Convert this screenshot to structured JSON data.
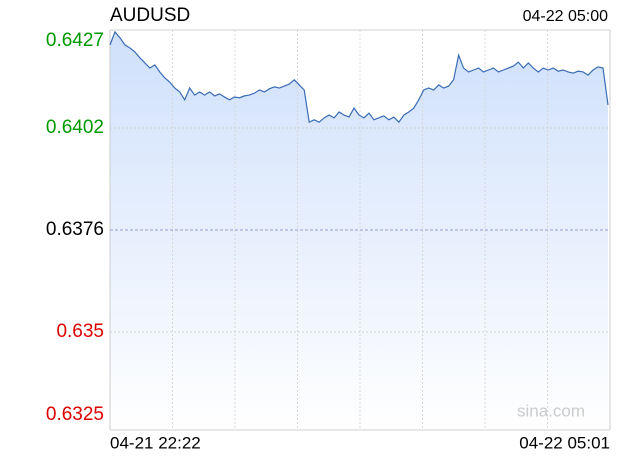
{
  "chart_data": {
    "type": "line",
    "title": "AUDUSD",
    "time": "04-22 05:00",
    "xlabels": [
      "04-21 22:22",
      "04-22 05:01"
    ],
    "watermark": "sina.com",
    "ylim": [
      0.6325,
      0.6427
    ],
    "yticks": [
      0.6427,
      0.6402,
      0.6376,
      0.635,
      0.6325
    ],
    "ytick_colors": [
      "#009900",
      "#009900",
      "#000000",
      "#dd0000",
      "#dd0000"
    ],
    "color": "#3a6cb5",
    "fill": "#cfe0fb",
    "grid": true,
    "values": [
      0.64232,
      0.64265,
      0.6425,
      0.64232,
      0.64224,
      0.64214,
      0.64199,
      0.64186,
      0.64173,
      0.64181,
      0.64163,
      0.64148,
      0.64137,
      0.64122,
      0.64112,
      0.64092,
      0.64122,
      0.64104,
      0.64112,
      0.64104,
      0.64112,
      0.64102,
      0.64107,
      0.64099,
      0.64092,
      0.64099,
      0.64097,
      0.64102,
      0.64104,
      0.64109,
      0.64117,
      0.64112,
      0.6412,
      0.64125,
      0.64122,
      0.64127,
      0.64132,
      0.64143,
      0.6413,
      0.64117,
      0.64035,
      0.64041,
      0.64035,
      0.64046,
      0.64053,
      0.64046,
      0.64061,
      0.64053,
      0.64048,
      0.64071,
      0.64053,
      0.64046,
      0.64058,
      0.64041,
      0.64046,
      0.64051,
      0.64041,
      0.64048,
      0.64035,
      0.64053,
      0.64061,
      0.64071,
      0.64092,
      0.64117,
      0.64122,
      0.64117,
      0.6413,
      0.64122,
      0.64127,
      0.64143,
      0.64206,
      0.64173,
      0.64163,
      0.64168,
      0.64173,
      0.64163,
      0.64168,
      0.64173,
      0.64163,
      0.64168,
      0.64173,
      0.64178,
      0.64188,
      0.64173,
      0.64186,
      0.64173,
      0.64163,
      0.64173,
      0.64168,
      0.64173,
      0.64165,
      0.64168,
      0.64163,
      0.6416,
      0.64165,
      0.64163,
      0.64155,
      0.64168,
      0.64176,
      0.64173,
      0.64079
    ]
  }
}
